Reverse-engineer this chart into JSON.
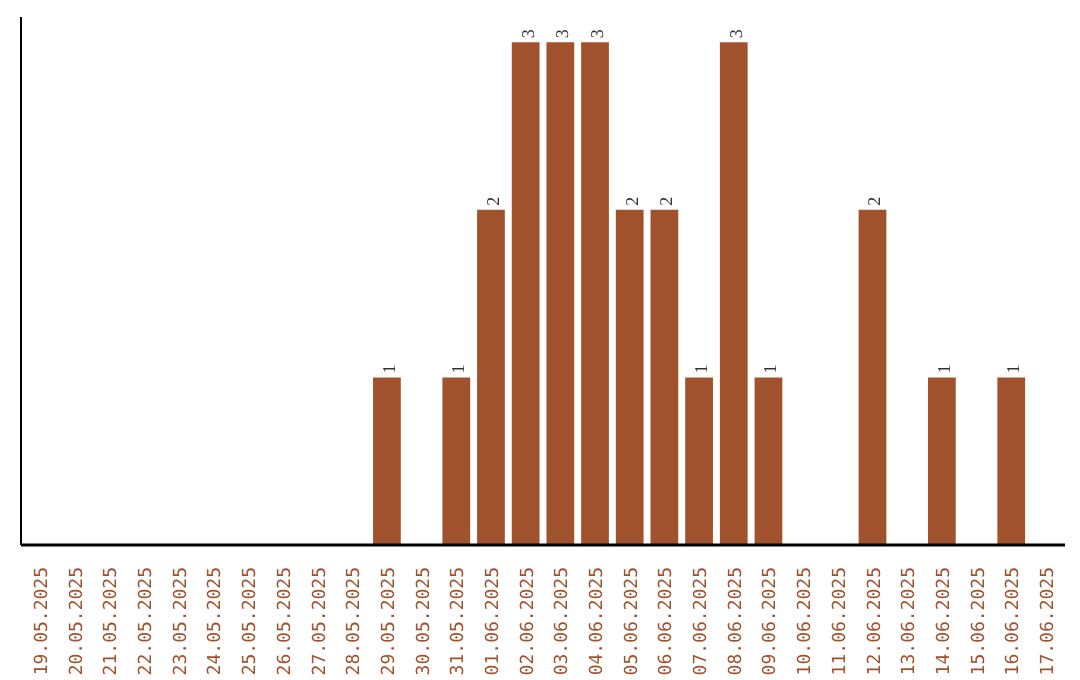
{
  "chart_data": {
    "type": "bar",
    "categories": [
      "19.05.2025",
      "20.05.2025",
      "21.05.2025",
      "22.05.2025",
      "23.05.2025",
      "24.05.2025",
      "25.05.2025",
      "26.05.2025",
      "27.05.2025",
      "28.05.2025",
      "29.05.2025",
      "30.05.2025",
      "31.05.2025",
      "01.06.2025",
      "02.06.2025",
      "03.06.2025",
      "04.06.2025",
      "05.06.2025",
      "06.06.2025",
      "07.06.2025",
      "08.06.2025",
      "09.06.2025",
      "10.06.2025",
      "11.06.2025",
      "12.06.2025",
      "13.06.2025",
      "14.06.2025",
      "15.06.2025",
      "16.06.2025",
      "17.06.2025"
    ],
    "values": [
      0,
      0,
      0,
      0,
      0,
      0,
      0,
      0,
      0,
      0,
      1,
      0,
      1,
      2,
      3,
      3,
      3,
      2,
      2,
      1,
      3,
      1,
      0,
      0,
      2,
      0,
      1,
      0,
      1,
      0
    ],
    "value_labels": [
      null,
      null,
      null,
      null,
      null,
      null,
      null,
      null,
      null,
      null,
      "1",
      null,
      "1",
      "2",
      "3",
      "3",
      "3",
      "2",
      "2",
      "1",
      "3",
      "1",
      null,
      null,
      "2",
      null,
      "1",
      null,
      "1",
      null
    ],
    "color": "#a0522d",
    "ylim": [
      0,
      3.15
    ],
    "tick_labels": "x",
    "grid": false
  }
}
